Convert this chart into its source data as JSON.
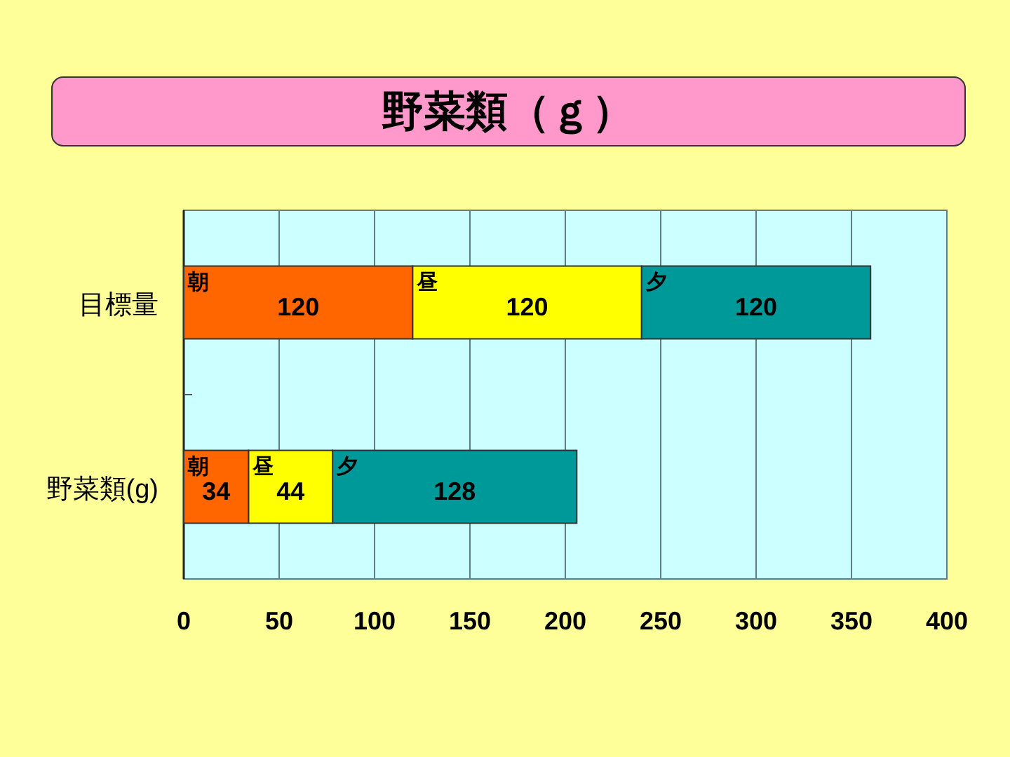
{
  "chart_data": {
    "type": "bar",
    "title": "野菜類（ｇ）",
    "orientation": "horizontal",
    "stacked": true,
    "categories": [
      "目標量",
      "野菜類(g)"
    ],
    "series": [
      {
        "name": "朝",
        "color": "#ff6600",
        "values": [
          120,
          34
        ]
      },
      {
        "name": "昼",
        "color": "#ffff00",
        "values": [
          120,
          44
        ]
      },
      {
        "name": "夕",
        "color": "#009999",
        "values": [
          120,
          128
        ]
      }
    ],
    "xlim": [
      0,
      400
    ],
    "xticks": [
      0,
      50,
      100,
      150,
      200,
      250,
      300,
      350,
      400
    ],
    "grid": "x",
    "data_labels": true
  }
}
